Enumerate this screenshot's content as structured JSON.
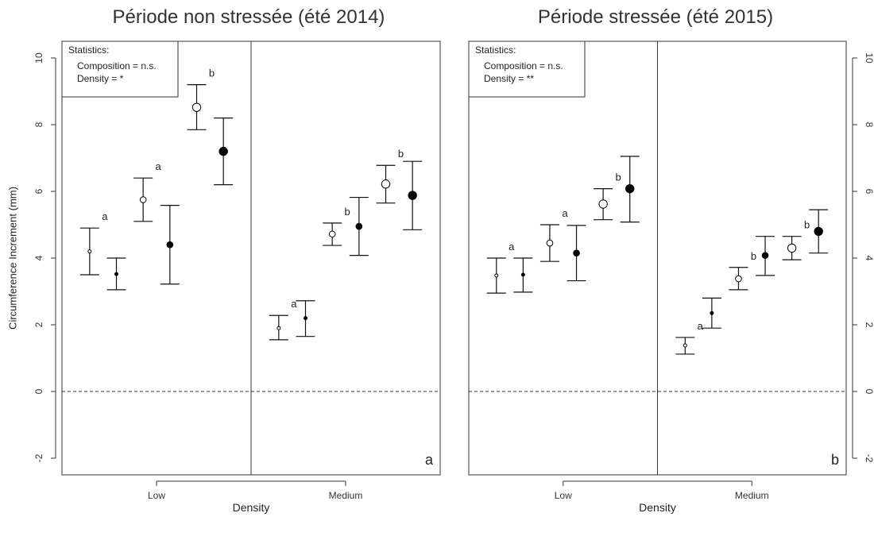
{
  "chart_data": [
    {
      "type": "scatter",
      "subtype": "errorbar",
      "title": "Période non stressée (été 2014)",
      "xlabel": "Density",
      "ylabel": "Circumference Increment (mm)",
      "ylim": [
        -2.5,
        10.5
      ],
      "yticks": [
        -2,
        0,
        2,
        4,
        6,
        8,
        10
      ],
      "y_axis_side": "left",
      "groups": [
        "Low",
        "Medium"
      ],
      "reference_line": 0,
      "panel_label": "a",
      "statistics": {
        "title": "Statistics:",
        "lines": [
          "Composition = n.s.",
          "Density = *"
        ]
      },
      "points": [
        {
          "group": "Low",
          "mean": 4.2,
          "lower": 3.5,
          "upper": 4.9,
          "filled": false,
          "size": "small",
          "letter": "a"
        },
        {
          "group": "Low",
          "mean": 3.52,
          "lower": 3.05,
          "upper": 4.0,
          "filled": true,
          "size": "small",
          "letter": ""
        },
        {
          "group": "Low",
          "mean": 5.75,
          "lower": 5.1,
          "upper": 6.4,
          "filled": false,
          "size": "medium",
          "letter": "a"
        },
        {
          "group": "Low",
          "mean": 4.4,
          "lower": 3.22,
          "upper": 5.58,
          "filled": true,
          "size": "medium",
          "letter": ""
        },
        {
          "group": "Low",
          "mean": 8.52,
          "lower": 7.85,
          "upper": 9.2,
          "filled": false,
          "size": "large",
          "letter": "b"
        },
        {
          "group": "Low",
          "mean": 7.2,
          "lower": 6.2,
          "upper": 8.2,
          "filled": true,
          "size": "large",
          "letter": ""
        },
        {
          "group": "Medium",
          "mean": 1.9,
          "lower": 1.55,
          "upper": 2.28,
          "filled": false,
          "size": "small",
          "letter": "a"
        },
        {
          "group": "Medium",
          "mean": 2.2,
          "lower": 1.65,
          "upper": 2.72,
          "filled": true,
          "size": "small",
          "letter": ""
        },
        {
          "group": "Medium",
          "mean": 4.72,
          "lower": 4.38,
          "upper": 5.05,
          "filled": false,
          "size": "medium",
          "letter": "b"
        },
        {
          "group": "Medium",
          "mean": 4.95,
          "lower": 4.08,
          "upper": 5.82,
          "filled": true,
          "size": "medium",
          "letter": ""
        },
        {
          "group": "Medium",
          "mean": 6.22,
          "lower": 5.65,
          "upper": 6.78,
          "filled": false,
          "size": "large",
          "letter": "b"
        },
        {
          "group": "Medium",
          "mean": 5.88,
          "lower": 4.85,
          "upper": 6.9,
          "filled": true,
          "size": "large",
          "letter": ""
        }
      ]
    },
    {
      "type": "scatter",
      "subtype": "errorbar",
      "title": "Période stressée (été 2015)",
      "xlabel": "Density",
      "ylabel": "",
      "ylim": [
        -2.5,
        10.5
      ],
      "yticks": [
        -2,
        0,
        2,
        4,
        6,
        8,
        10
      ],
      "y_axis_side": "right",
      "groups": [
        "Low",
        "Medium"
      ],
      "reference_line": 0,
      "panel_label": "b",
      "statistics": {
        "title": "Statistics:",
        "lines": [
          "Composition = n.s.",
          "Density = **"
        ]
      },
      "points": [
        {
          "group": "Low",
          "mean": 3.48,
          "lower": 2.95,
          "upper": 4.0,
          "filled": false,
          "size": "small",
          "letter": "a"
        },
        {
          "group": "Low",
          "mean": 3.5,
          "lower": 2.98,
          "upper": 4.0,
          "filled": true,
          "size": "small",
          "letter": ""
        },
        {
          "group": "Low",
          "mean": 4.45,
          "lower": 3.9,
          "upper": 5.0,
          "filled": false,
          "size": "medium",
          "letter": "a"
        },
        {
          "group": "Low",
          "mean": 4.15,
          "lower": 3.32,
          "upper": 4.98,
          "filled": true,
          "size": "medium",
          "letter": ""
        },
        {
          "group": "Low",
          "mean": 5.62,
          "lower": 5.15,
          "upper": 6.08,
          "filled": false,
          "size": "large",
          "letter": "b"
        },
        {
          "group": "Low",
          "mean": 6.08,
          "lower": 5.08,
          "upper": 7.05,
          "filled": true,
          "size": "large",
          "letter": ""
        },
        {
          "group": "Medium",
          "mean": 1.38,
          "lower": 1.12,
          "upper": 1.62,
          "filled": false,
          "size": "small",
          "letter": "a"
        },
        {
          "group": "Medium",
          "mean": 2.35,
          "lower": 1.9,
          "upper": 2.8,
          "filled": true,
          "size": "small",
          "letter": ""
        },
        {
          "group": "Medium",
          "mean": 3.38,
          "lower": 3.05,
          "upper": 3.72,
          "filled": false,
          "size": "medium",
          "letter": "b"
        },
        {
          "group": "Medium",
          "mean": 4.08,
          "lower": 3.48,
          "upper": 4.65,
          "filled": true,
          "size": "medium",
          "letter": ""
        },
        {
          "group": "Medium",
          "mean": 4.3,
          "lower": 3.95,
          "upper": 4.65,
          "filled": false,
          "size": "large",
          "letter": "b"
        },
        {
          "group": "Medium",
          "mean": 4.8,
          "lower": 4.15,
          "upper": 5.45,
          "filled": true,
          "size": "large",
          "letter": ""
        }
      ]
    }
  ]
}
